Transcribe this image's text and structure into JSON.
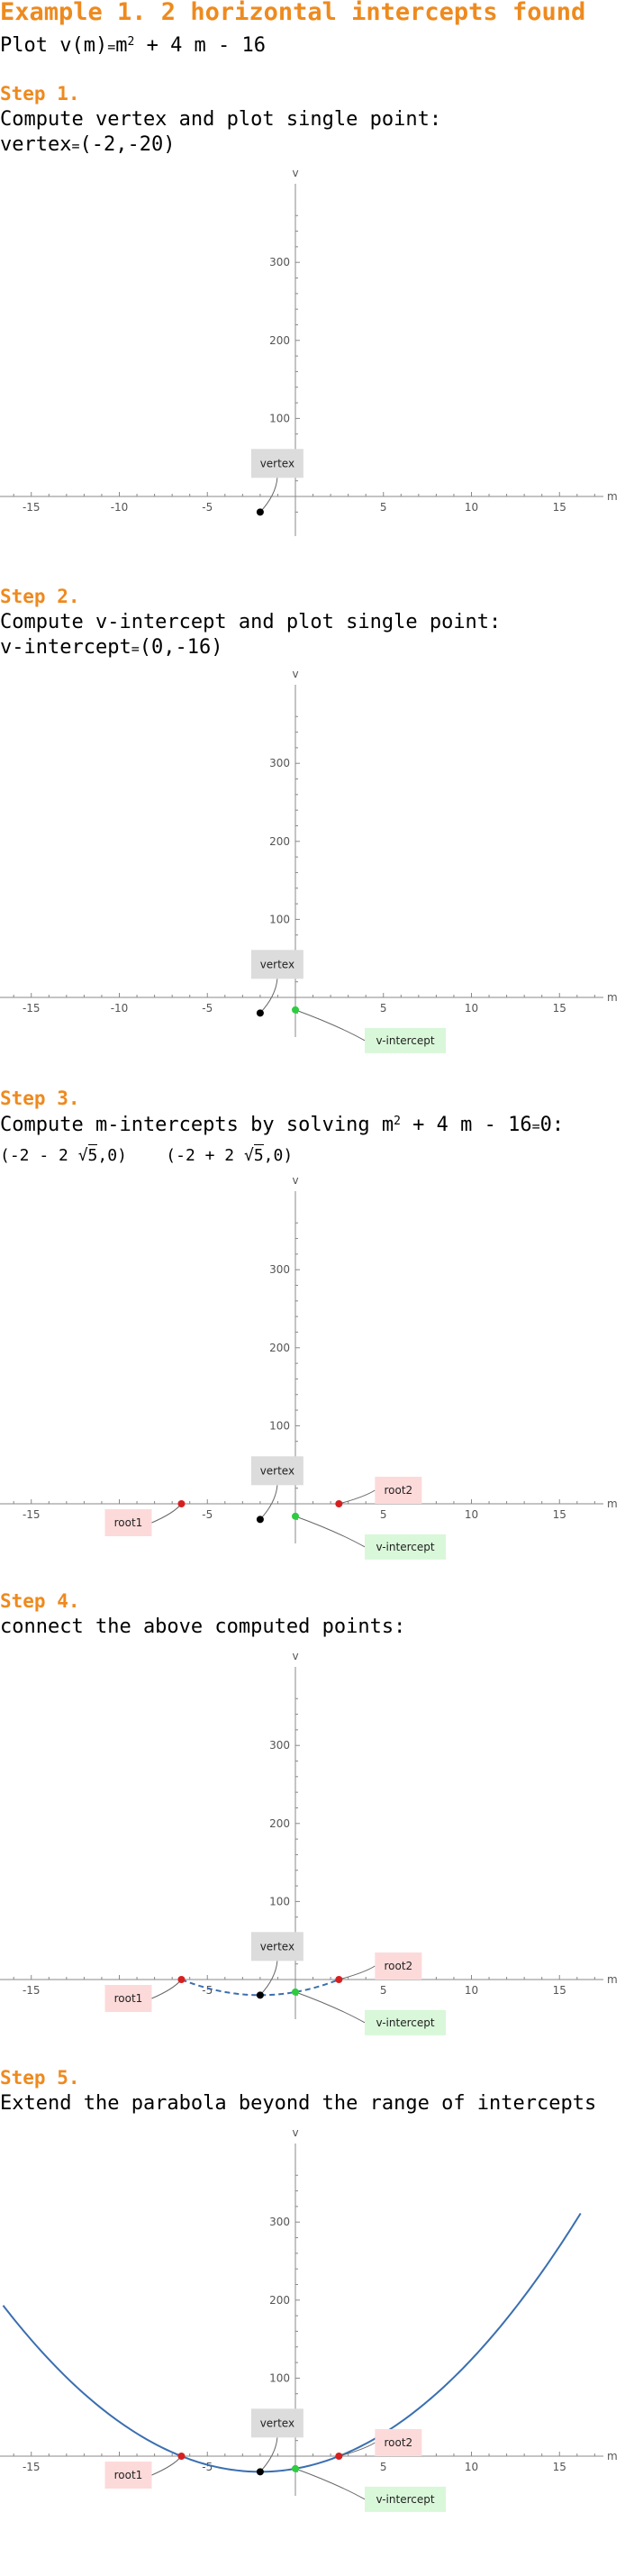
{
  "title": "Example 1. 2 horizontal intercepts found",
  "plot_line": {
    "prefix": "Plot ",
    "fname": "v(m)",
    "eq": "=",
    "m": "m",
    "exp": "2",
    "rest": " + 4 m - 16"
  },
  "steps": [
    {
      "label": "Step 1.",
      "line1": "Compute vertex and plot single point:",
      "line2_name": "vertex",
      "line2_eq": "=",
      "line2_val": "(-2,-20)"
    },
    {
      "label": "Step 2.",
      "line1": "Compute v-intercept and plot single point:",
      "line2_name": "v-intercept",
      "line2_eq": "=",
      "line2_val": "(0,-16)"
    },
    {
      "label": "Step 3.",
      "line1a": "Compute m-intercepts by solving m",
      "line1_exp": "2",
      "line1b": " + 4 m - 16",
      "line1c": "=",
      "line1d": "0:",
      "root1_pre": "(-2 - 2 ",
      "root_rad": "√",
      "root_radicand": "5",
      "root1_post": ",0)",
      "root2_pre": "(-2 + 2 ",
      "root2_post": ",0)"
    },
    {
      "label": "Step 4.",
      "line1": "connect the above computed points:"
    },
    {
      "label": "Step 5.",
      "line1": "Extend the parabola beyond the range of intercepts"
    }
  ],
  "colors": {
    "accent": "#ee8a1e",
    "curve": "#3a6fb0",
    "vertex": "#000000",
    "v_intercept": "#2ecc40",
    "root": "#d62020"
  },
  "chart_data": [
    {
      "type": "scatter",
      "xlabel": "m",
      "ylabel": "v",
      "xlim": [
        -17,
        17
      ],
      "ylim": [
        -30,
        380
      ],
      "xticks": [
        -15,
        -10,
        -5,
        5,
        10,
        15
      ],
      "yticks": [
        100,
        200,
        300
      ],
      "points": [
        {
          "label": "vertex",
          "x": -2,
          "y": -20
        }
      ]
    },
    {
      "type": "scatter",
      "xlabel": "m",
      "ylabel": "v",
      "xlim": [
        -17,
        17
      ],
      "ylim": [
        -30,
        380
      ],
      "xticks": [
        -15,
        -10,
        -5,
        5,
        10,
        15
      ],
      "yticks": [
        100,
        200,
        300
      ],
      "points": [
        {
          "label": "vertex",
          "x": -2,
          "y": -20
        },
        {
          "label": "v-intercept",
          "x": 0,
          "y": -16
        }
      ]
    },
    {
      "type": "scatter",
      "xlabel": "m",
      "ylabel": "v",
      "xlim": [
        -17,
        17
      ],
      "ylim": [
        -30,
        380
      ],
      "xticks": [
        -15,
        -10,
        -5,
        5,
        10,
        15
      ],
      "yticks": [
        100,
        200,
        300
      ],
      "points": [
        {
          "label": "vertex",
          "x": -2,
          "y": -20
        },
        {
          "label": "v-intercept",
          "x": 0,
          "y": -16
        },
        {
          "label": "root1",
          "x": -6.472,
          "y": 0
        },
        {
          "label": "root2",
          "x": 2.472,
          "y": 0
        }
      ]
    },
    {
      "type": "line",
      "xlabel": "m",
      "ylabel": "v",
      "xlim": [
        -17,
        17
      ],
      "ylim": [
        -30,
        380
      ],
      "xticks": [
        -15,
        -10,
        -5,
        5,
        10,
        15
      ],
      "yticks": [
        100,
        200,
        300
      ],
      "curve": {
        "style": "dashed",
        "x_range": [
          -6.472,
          2.472
        ],
        "a": 1,
        "b": 4,
        "c": -16
      },
      "points": [
        {
          "label": "vertex",
          "x": -2,
          "y": -20
        },
        {
          "label": "v-intercept",
          "x": 0,
          "y": -16
        },
        {
          "label": "root1",
          "x": -6.472,
          "y": 0
        },
        {
          "label": "root2",
          "x": 2.472,
          "y": 0
        }
      ]
    },
    {
      "type": "line",
      "xlabel": "m",
      "ylabel": "v",
      "xlim": [
        -17,
        17
      ],
      "ylim": [
        -30,
        380
      ],
      "xticks": [
        -15,
        -10,
        -5,
        5,
        10,
        15
      ],
      "yticks": [
        100,
        200,
        300
      ],
      "curve": {
        "style": "solid",
        "x_range": [
          -16.6,
          16.2
        ],
        "a": 1,
        "b": 4,
        "c": -16
      },
      "points": [
        {
          "label": "vertex",
          "x": -2,
          "y": -20
        },
        {
          "label": "v-intercept",
          "x": 0,
          "y": -16
        },
        {
          "label": "root1",
          "x": -6.472,
          "y": 0
        },
        {
          "label": "root2",
          "x": 2.472,
          "y": 0
        }
      ]
    }
  ]
}
